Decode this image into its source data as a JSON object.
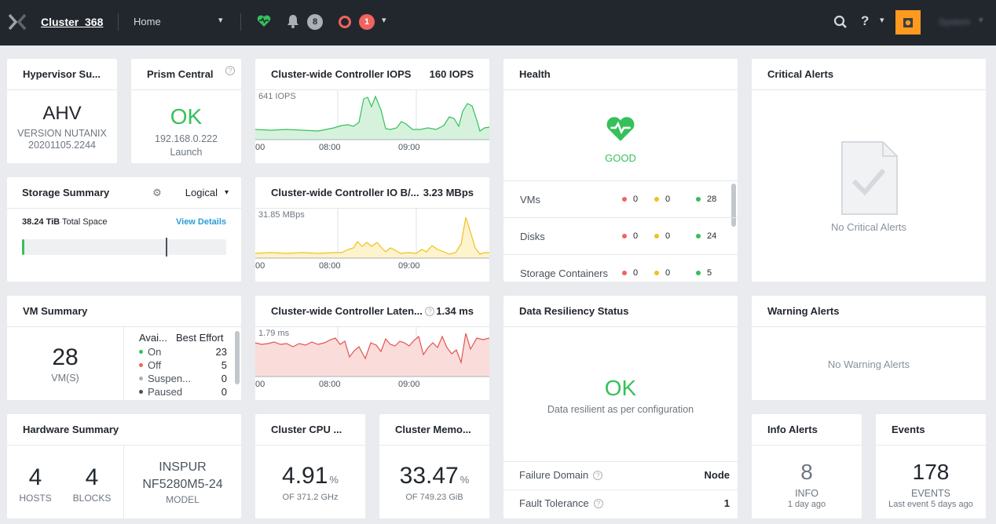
{
  "topbar": {
    "cluster_name": "Cluster_368",
    "nav_selected": "Home",
    "notification_count": "8",
    "critical_count": "1",
    "user_name": "System"
  },
  "hypervisor": {
    "title": "Hypervisor Su...",
    "name": "AHV",
    "version_line1": "VERSION NUTANIX",
    "version_line2": "20201105.2244"
  },
  "prism": {
    "title": "Prism Central",
    "status": "OK",
    "ip": "192.168.0.222",
    "link": "Launch"
  },
  "iops": {
    "title": "Cluster-wide Controller IOPS",
    "value": "160 IOPS",
    "peak": "641 IOPS",
    "ticks": [
      "00",
      "08:00",
      "09:00"
    ]
  },
  "iobw": {
    "title": "Cluster-wide Controller IO B/...",
    "value": "3.23 MBps",
    "peak": "31.85 MBps",
    "ticks": [
      "00",
      "08:00",
      "09:00"
    ]
  },
  "latency": {
    "title": "Cluster-wide Controller Laten...",
    "value": "1.34 ms",
    "peak": "1.79 ms",
    "ticks": [
      "00",
      "08:00",
      "09:00"
    ]
  },
  "health": {
    "title": "Health",
    "status": "GOOD",
    "rows": [
      {
        "label": "VMs",
        "red": "0",
        "yellow": "0",
        "green": "28"
      },
      {
        "label": "Disks",
        "red": "0",
        "yellow": "0",
        "green": "24"
      },
      {
        "label": "Storage Containers",
        "red": "0",
        "yellow": "0",
        "green": "5"
      }
    ]
  },
  "critical": {
    "title": "Critical Alerts",
    "empty": "No Critical Alerts"
  },
  "storage": {
    "title": "Storage Summary",
    "view": "Logical",
    "total_value": "38.24 TiB",
    "total_label": "Total Space",
    "details": "View Details",
    "used_fraction": 0.01
  },
  "vm": {
    "title": "VM Summary",
    "count": "28",
    "count_label": "VM(S)",
    "col1": "Avai...",
    "col2": "Best Effort",
    "rows": [
      {
        "label": "On",
        "value": "23",
        "color": "#36c05b"
      },
      {
        "label": "Off",
        "value": "5",
        "color": "#f0645f"
      },
      {
        "label": "Suspen...",
        "value": "0",
        "color": "#aab0b6"
      },
      {
        "label": "Paused",
        "value": "0",
        "color": "#4a525b"
      }
    ]
  },
  "resiliency": {
    "title": "Data Resiliency Status",
    "status": "OK",
    "desc": "Data resilient as per configuration",
    "failure_label": "Failure Domain",
    "failure_value": "Node",
    "tolerance_label": "Fault Tolerance",
    "tolerance_value": "1"
  },
  "warning": {
    "title": "Warning Alerts",
    "empty": "No Warning Alerts"
  },
  "hardware": {
    "title": "Hardware Summary",
    "hosts": "4",
    "hosts_label": "HOSTS",
    "blocks": "4",
    "blocks_label": "BLOCKS",
    "vendor": "INSPUR",
    "model_name": "NF5280M5-24",
    "model_label": "MODEL"
  },
  "cpu": {
    "title": "Cluster CPU ...",
    "value": "4.91",
    "unit": "%",
    "sub": "OF 371.2 GHz"
  },
  "memory": {
    "title": "Cluster Memo...",
    "value": "33.47",
    "unit": "%",
    "sub": "OF 749.23 GiB"
  },
  "info": {
    "title": "Info Alerts",
    "count": "8",
    "label": "INFO",
    "time": "1 day ago"
  },
  "events": {
    "title": "Events",
    "count": "178",
    "label": "EVENTS",
    "time": "Last event 5 days ago"
  },
  "colors": {
    "topbar": "#22272e",
    "accent_green": "#36c05b",
    "accent_red": "#f0645f",
    "accent_yellow": "#f0c020",
    "link": "#2a9dd8",
    "user_highlight": "#ff9a1f"
  }
}
